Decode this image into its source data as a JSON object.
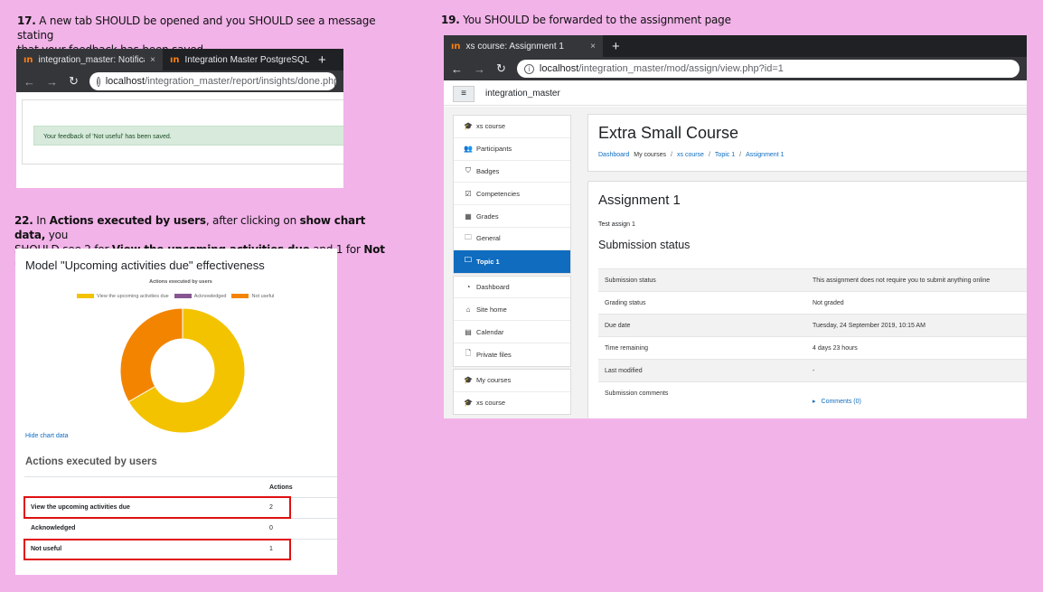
{
  "step17": {
    "number": "17.",
    "text_line1": " A new tab SHOULD be opened and you SHOULD see a message stating",
    "text_line2": "that your feedback has been saved",
    "tabs": [
      {
        "label": "integration_master: Notificatio",
        "close": "×"
      },
      {
        "label": "Integration Master PostgreSQL",
        "close": "×"
      }
    ],
    "new_tab": "+",
    "url_host": "localhost",
    "url_path": "/integration_master/report/insights/done.php?act",
    "alert": "Your feedback of 'Not useful' has been saved."
  },
  "step19": {
    "number": "19.",
    "text": " You SHOULD be forwarded to the assignment page",
    "tab": {
      "label": "xs course: Assignment 1",
      "close": "×"
    },
    "new_tab": "+",
    "url_host": "localhost",
    "url_path": "/integration_master/mod/assign/view.php?id=1",
    "site_name": "integration_master",
    "menu_icon": "≡",
    "sidebar_group1": [
      {
        "label": "xs course",
        "icon": "graduation-cap-icon",
        "glyph": "🎓"
      },
      {
        "label": "Participants",
        "icon": "users-icon",
        "glyph": "👥"
      },
      {
        "label": "Badges",
        "icon": "shield-icon",
        "glyph": "⛉"
      },
      {
        "label": "Competencies",
        "icon": "check-square-icon",
        "glyph": "☑"
      },
      {
        "label": "Grades",
        "icon": "table-icon",
        "glyph": "▦"
      },
      {
        "label": "General",
        "icon": "folder-icon",
        "glyph": "🗀"
      },
      {
        "label": "Topic 1",
        "icon": "folder-icon",
        "glyph": "🗀",
        "active": true
      }
    ],
    "sidebar_group2": [
      {
        "label": "Dashboard",
        "icon": "dashboard-icon",
        "glyph": "◔"
      },
      {
        "label": "Site home",
        "icon": "home-icon",
        "glyph": "⌂"
      },
      {
        "label": "Calendar",
        "icon": "calendar-icon",
        "glyph": "▤"
      },
      {
        "label": "Private files",
        "icon": "file-icon",
        "glyph": "🗋"
      }
    ],
    "sidebar_group3": [
      {
        "label": "My courses",
        "icon": "graduation-cap-icon",
        "glyph": "🎓"
      },
      {
        "label": "xs course",
        "icon": "graduation-cap-icon",
        "glyph": "🎓"
      }
    ],
    "course_title": "Extra Small Course",
    "breadcrumbs": [
      "Dashboard",
      "My courses",
      "xs course",
      "Topic 1",
      "Assignment 1"
    ],
    "breadcrumb_sep": "/",
    "assignment_title": "Assignment 1",
    "assignment_desc": "Test assign 1",
    "submission_heading": "Submission status",
    "status_rows": [
      {
        "key": "Submission status",
        "value": "This assignment does not require you to submit anything online"
      },
      {
        "key": "Grading status",
        "value": "Not graded"
      },
      {
        "key": "Due date",
        "value": "Tuesday, 24 September 2019, 10:15 AM"
      },
      {
        "key": "Time remaining",
        "value": "4 days 23 hours"
      },
      {
        "key": "Last modified",
        "value": "-"
      },
      {
        "key": "Submission comments",
        "value": "Comments (0)"
      }
    ],
    "comments_arrow": "▸"
  },
  "step22": {
    "number": "22.",
    "line1_a": " In ",
    "line1_b": "Actions executed by users",
    "line1_c": ", after clicking on ",
    "line1_d": "show chart data,",
    "line1_e": " you",
    "line2_a": "SHOULD see 2 for ",
    "line2_b": "View the upcoming activities due",
    "line2_c": " and 1 for ",
    "line2_d": "Not useful",
    "line2_e": ".",
    "panel_title": "Model \"Upcoming activities due\" effectiveness",
    "hide_chart_link": "Hide chart data",
    "table_heading": "Actions executed by users",
    "table_col": "Actions"
  },
  "chart_data": {
    "type": "pie",
    "donut": true,
    "title": "Actions executed by users",
    "legend_position": "top",
    "categories": [
      "View the upcoming activities due",
      "Acknowledged",
      "Not useful"
    ],
    "values": [
      2,
      0,
      1
    ],
    "colors": [
      "#f3c300",
      "#875692",
      "#f38400"
    ]
  }
}
